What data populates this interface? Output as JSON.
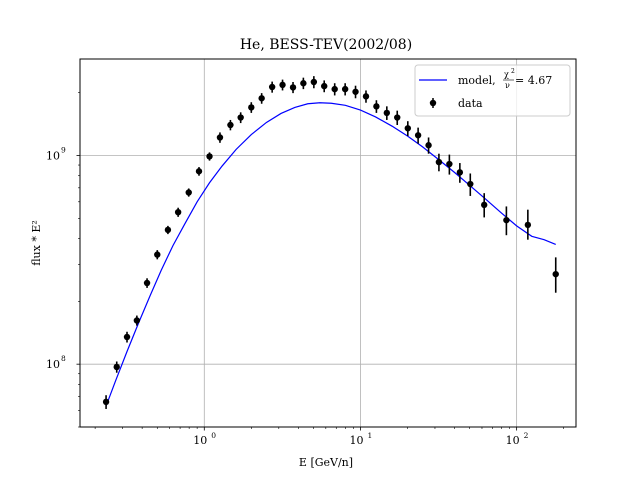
{
  "chart_data": {
    "type": "scatter",
    "title": "He, BESS-TEV(2002/08)",
    "xlabel": "E [GeV/n]",
    "ylabel": "flux * E²",
    "xscale": "log",
    "yscale": "log",
    "xlim": [
      0.16,
      240
    ],
    "ylim": [
      50000000.0,
      2900000000.0
    ],
    "grid": true,
    "legend_position": "top-right",
    "x_ticks": [
      {
        "value": 1,
        "base": "10",
        "exp": "0"
      },
      {
        "value": 10,
        "base": "10",
        "exp": "1"
      },
      {
        "value": 100,
        "base": "10",
        "exp": "2"
      }
    ],
    "y_ticks": [
      {
        "value": 100000000.0,
        "base": "10",
        "exp": "8"
      },
      {
        "value": 1000000000.0,
        "base": "10",
        "exp": "9"
      }
    ],
    "colors": {
      "model": "#0000ff",
      "data": "#000000",
      "grid": "#b0b0b0"
    },
    "series": [
      {
        "name": "data",
        "kind": "errorbar",
        "x": [
          0.235,
          0.275,
          0.32,
          0.37,
          0.43,
          0.5,
          0.585,
          0.68,
          0.795,
          0.925,
          1.08,
          1.26,
          1.47,
          1.71,
          2.0,
          2.33,
          2.72,
          3.17,
          3.7,
          4.31,
          5.03,
          5.86,
          6.84,
          7.98,
          9.3,
          10.85,
          12.65,
          14.75,
          17.2,
          20.1,
          23.4,
          27.3,
          31.8,
          37.1,
          43.3,
          50.5,
          62.0,
          86.0,
          118.0,
          178.0
        ],
        "y": [
          66000000.0,
          97000000.0,
          135000000.0,
          162000000.0,
          245000000.0,
          335000000.0,
          440000000.0,
          535000000.0,
          665000000.0,
          840000000.0,
          990000000.0,
          1220000000.0,
          1400000000.0,
          1520000000.0,
          1700000000.0,
          1880000000.0,
          2130000000.0,
          2180000000.0,
          2120000000.0,
          2220000000.0,
          2250000000.0,
          2150000000.0,
          2080000000.0,
          2080000000.0,
          2020000000.0,
          1920000000.0,
          1720000000.0,
          1600000000.0,
          1520000000.0,
          1350000000.0,
          1250000000.0,
          1120000000.0,
          930000000.0,
          910000000.0,
          830000000.0,
          730000000.0,
          580000000.0,
          490000000.0,
          465000000.0,
          270000000.0
        ],
        "ylow": [
          61000000.0,
          91000000.0,
          127000000.0,
          153000000.0,
          232000000.0,
          318000000.0,
          420000000.0,
          508000000.0,
          635000000.0,
          800000000.0,
          945000000.0,
          1150000000.0,
          1320000000.0,
          1430000000.0,
          1600000000.0,
          1770000000.0,
          2000000000.0,
          2050000000.0,
          1990000000.0,
          2080000000.0,
          2100000000.0,
          2010000000.0,
          1940000000.0,
          1940000000.0,
          1880000000.0,
          1790000000.0,
          1600000000.0,
          1480000000.0,
          1400000000.0,
          1240000000.0,
          1140000000.0,
          1020000000.0,
          840000000.0,
          810000000.0,
          740000000.0,
          640000000.0,
          505000000.0,
          415000000.0,
          395000000.0,
          220000000.0
        ],
        "yhigh": [
          71000000.0,
          103000000.0,
          143000000.0,
          171000000.0,
          258000000.0,
          352000000.0,
          460000000.0,
          562000000.0,
          695000000.0,
          880000000.0,
          1035000000.0,
          1290000000.0,
          1480000000.0,
          1610000000.0,
          1800000000.0,
          1990000000.0,
          2260000000.0,
          2310000000.0,
          2250000000.0,
          2360000000.0,
          2400000000.0,
          2290000000.0,
          2220000000.0,
          2220000000.0,
          2160000000.0,
          2050000000.0,
          1840000000.0,
          1720000000.0,
          1640000000.0,
          1460000000.0,
          1360000000.0,
          1220000000.0,
          1020000000.0,
          1010000000.0,
          920000000.0,
          820000000.0,
          660000000.0,
          570000000.0,
          550000000.0,
          325000000.0
        ]
      },
      {
        "name": "model",
        "kind": "line",
        "x": [
          0.235,
          0.27,
          0.32,
          0.38,
          0.45,
          0.53,
          0.63,
          0.75,
          0.9,
          1.08,
          1.3,
          1.6,
          2.0,
          2.5,
          3.1,
          3.8,
          4.6,
          5.5,
          6.5,
          8.0,
          10.0,
          12.5,
          16.0,
          20.0,
          25.0,
          32.0,
          40.0,
          50.0,
          63.0,
          80.0,
          100.0,
          125.0,
          150.0,
          178.0
        ],
        "y": [
          63000000.0,
          83000000.0,
          115000000.0,
          158000000.0,
          213000000.0,
          282000000.0,
          370000000.0,
          470000000.0,
          600000000.0,
          740000000.0,
          890000000.0,
          1070000000.0,
          1260000000.0,
          1440000000.0,
          1590000000.0,
          1700000000.0,
          1770000000.0,
          1790000000.0,
          1780000000.0,
          1740000000.0,
          1650000000.0,
          1530000000.0,
          1380000000.0,
          1240000000.0,
          1100000000.0,
          950000000.0,
          830000000.0,
          720000000.0,
          620000000.0,
          530000000.0,
          460000000.0,
          410000000.0,
          395000000.0,
          375000000.0
        ]
      }
    ],
    "legend": {
      "model_label": "model, ",
      "model_chi_sym": "χ",
      "model_chi_sup": "2",
      "model_nu_sym": "ν",
      "model_value": " = 4.67",
      "data_label": "data"
    }
  }
}
